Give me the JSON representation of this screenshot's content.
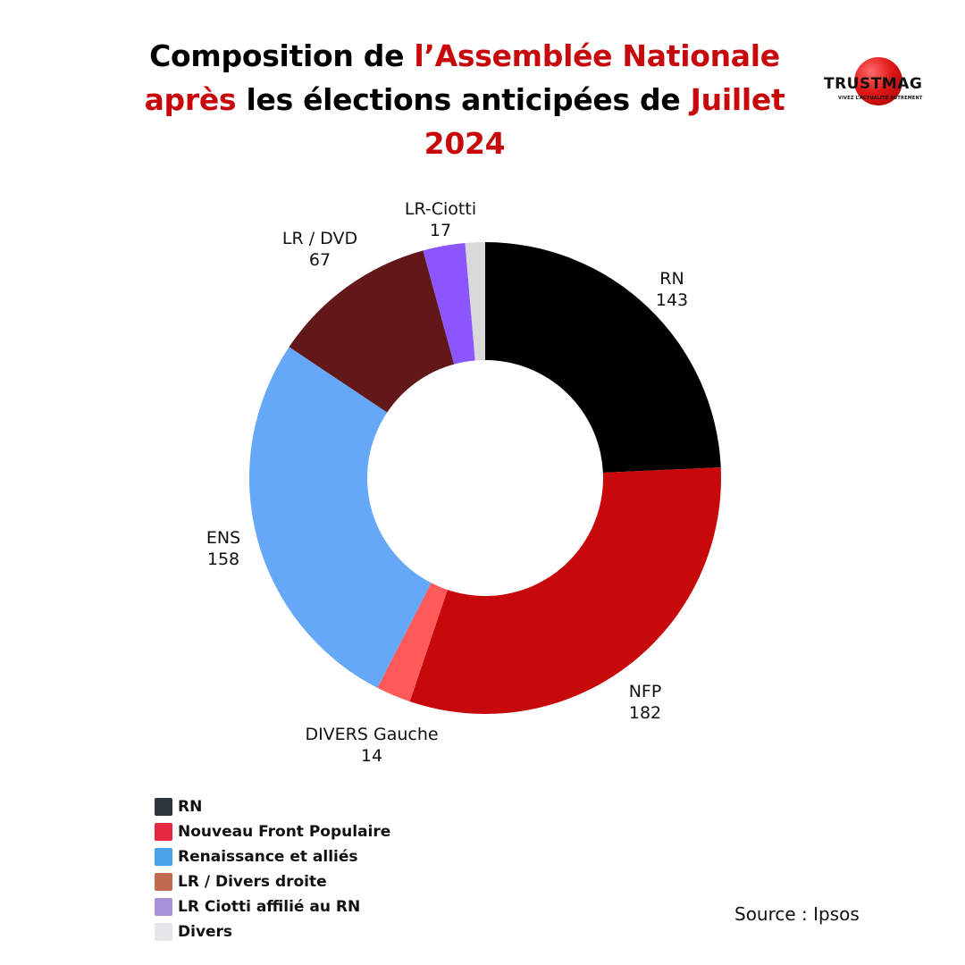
{
  "title": {
    "parts": [
      {
        "text": "Composition de ",
        "red": false
      },
      {
        "text": "l’Assemblée Nationale après",
        "red": true
      },
      {
        "text": " les élections anticipées de ",
        "red": false
      },
      {
        "text": "Juillet 2024",
        "red": true
      }
    ]
  },
  "logo": {
    "name": "TRUSTMAG",
    "tagline": "VIVEZ L’ACTUALITÉ AUTREMENT"
  },
  "chart_data": {
    "type": "donut",
    "title": "Composition de l’Assemblée Nationale après les élections anticipées de Juillet 2024",
    "slices": [
      {
        "label": "RN",
        "value": 143,
        "color": "#000000"
      },
      {
        "label": "NFP",
        "value": 182,
        "color": "#c8090c"
      },
      {
        "label": "DIVERS Gauche",
        "value": 14,
        "color": "#ff5a5a"
      },
      {
        "label": "ENS",
        "value": 158,
        "color": "#65a8f8"
      },
      {
        "label": "LR / DVD",
        "value": 67,
        "color": "#621818"
      },
      {
        "label": "LR-Ciotti",
        "value": 17,
        "color": "#8b55ff"
      },
      {
        "label": "",
        "value": 8,
        "color": "#d9d9d9"
      }
    ],
    "legend": [
      {
        "label": "RN",
        "color": "#2f353e"
      },
      {
        "label": "Nouveau Front Populaire",
        "color": "#e5283e"
      },
      {
        "label": "Renaissance et alliés",
        "color": "#4aa3ea"
      },
      {
        "label": "LR / Divers droite",
        "color": "#c06b50"
      },
      {
        "label": "LR Ciotti affilié au RN",
        "color": "#a890d8"
      },
      {
        "label": "Divers",
        "color": "#e6e6e9"
      }
    ],
    "legend_position": "bottom-left"
  },
  "source": "Source : Ipsos"
}
